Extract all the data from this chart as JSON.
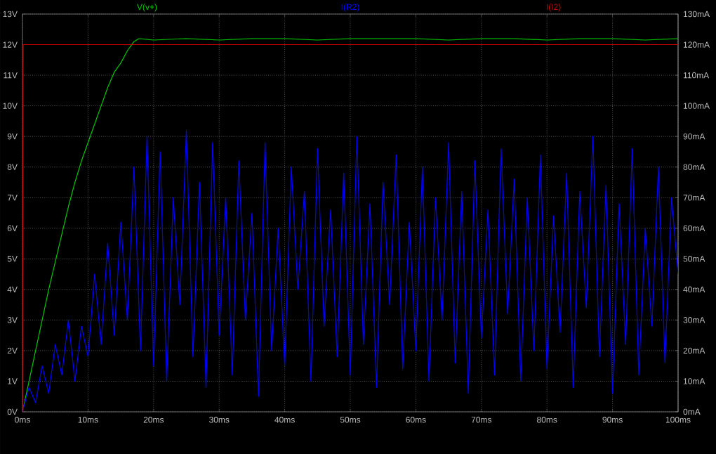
{
  "chart_data": {
    "type": "line",
    "xlim": [
      0,
      100
    ],
    "ylim": [
      0,
      13
    ],
    "y2lim": [
      0,
      130
    ],
    "xticks": [
      {
        "value": 0,
        "label": "0ms"
      },
      {
        "value": 10,
        "label": "10ms"
      },
      {
        "value": 20,
        "label": "20ms"
      },
      {
        "value": 30,
        "label": "30ms"
      },
      {
        "value": 40,
        "label": "40ms"
      },
      {
        "value": 50,
        "label": "50ms"
      },
      {
        "value": 60,
        "label": "60ms"
      },
      {
        "value": 70,
        "label": "70ms"
      },
      {
        "value": 80,
        "label": "80ms"
      },
      {
        "value": 90,
        "label": "90ms"
      },
      {
        "value": 100,
        "label": "100ms"
      }
    ],
    "yticks": [
      {
        "value": 0,
        "label": "0V"
      },
      {
        "value": 1,
        "label": "1V"
      },
      {
        "value": 2,
        "label": "2V"
      },
      {
        "value": 3,
        "label": "3V"
      },
      {
        "value": 4,
        "label": "4V"
      },
      {
        "value": 5,
        "label": "5V"
      },
      {
        "value": 6,
        "label": "6V"
      },
      {
        "value": 7,
        "label": "7V"
      },
      {
        "value": 8,
        "label": "8V"
      },
      {
        "value": 9,
        "label": "9V"
      },
      {
        "value": 10,
        "label": "10V"
      },
      {
        "value": 11,
        "label": "11V"
      },
      {
        "value": 12,
        "label": "12V"
      },
      {
        "value": 13,
        "label": "13V"
      }
    ],
    "y2ticks": [
      {
        "value": 0,
        "label": "0mA"
      },
      {
        "value": 10,
        "label": "10mA"
      },
      {
        "value": 20,
        "label": "20mA"
      },
      {
        "value": 30,
        "label": "30mA"
      },
      {
        "value": 40,
        "label": "40mA"
      },
      {
        "value": 50,
        "label": "50mA"
      },
      {
        "value": 60,
        "label": "60mA"
      },
      {
        "value": 70,
        "label": "70mA"
      },
      {
        "value": 80,
        "label": "80mA"
      },
      {
        "value": 90,
        "label": "90mA"
      },
      {
        "value": 100,
        "label": "100mA"
      },
      {
        "value": 110,
        "label": "110mA"
      },
      {
        "value": 120,
        "label": "120mA"
      },
      {
        "value": 130,
        "label": "130mA"
      }
    ],
    "grid": true,
    "series": [
      {
        "name": "V(v+)",
        "color": "#00c800",
        "x": [
          0,
          1,
          2,
          3,
          4,
          5,
          6,
          7,
          8,
          9,
          10,
          11,
          12,
          13,
          14,
          15,
          16,
          17,
          17.8,
          20,
          25,
          30,
          35,
          40,
          45,
          50,
          55,
          60,
          65,
          70,
          75,
          80,
          85,
          90,
          95,
          100
        ],
        "values": [
          0,
          1,
          2,
          3,
          4,
          4.9,
          5.8,
          6.7,
          7.5,
          8.2,
          8.8,
          9.4,
          10,
          10.6,
          11.1,
          11.4,
          11.8,
          12.1,
          12.2,
          12.15,
          12.2,
          12.15,
          12.2,
          12.2,
          12.15,
          12.2,
          12.2,
          12.2,
          12.15,
          12.2,
          12.2,
          12.15,
          12.2,
          12.2,
          12.15,
          12.2
        ]
      },
      {
        "name": "I(R2)",
        "color": "#0000ff",
        "axis": "y2",
        "x": [
          0,
          1,
          2,
          3,
          4,
          5,
          6,
          7,
          8,
          9,
          10,
          11,
          12,
          13,
          14,
          15,
          16,
          17,
          18,
          19,
          20,
          21,
          22,
          23,
          24,
          25,
          26,
          27,
          28,
          29,
          30,
          31,
          32,
          33,
          34,
          35,
          36,
          37,
          38,
          39,
          40,
          41,
          42,
          43,
          44,
          45,
          46,
          47,
          48,
          49,
          50,
          51,
          52,
          53,
          54,
          55,
          56,
          57,
          58,
          59,
          60,
          61,
          62,
          63,
          64,
          65,
          66,
          67,
          68,
          69,
          70,
          71,
          72,
          73,
          74,
          75,
          76,
          77,
          78,
          79,
          80,
          81,
          82,
          83,
          84,
          85,
          86,
          87,
          88,
          89,
          90,
          91,
          92,
          93,
          94,
          95,
          96,
          97,
          98,
          99,
          100
        ],
        "values": [
          0,
          8,
          3,
          15,
          6,
          22,
          12,
          30,
          10,
          28,
          18,
          45,
          22,
          55,
          25,
          62,
          30,
          80,
          20,
          90,
          15,
          85,
          10,
          70,
          35,
          92,
          18,
          75,
          8,
          88,
          25,
          70,
          12,
          82,
          30,
          65,
          5,
          88,
          20,
          60,
          15,
          80,
          40,
          72,
          10,
          86,
          28,
          66,
          18,
          78,
          12,
          90,
          22,
          68,
          8,
          75,
          35,
          84,
          14,
          62,
          20,
          80,
          10,
          70,
          30,
          88,
          16,
          72,
          6,
          82,
          24,
          66,
          12,
          86,
          32,
          76,
          10,
          70,
          20,
          84,
          14,
          64,
          26,
          78,
          8,
          72,
          34,
          90,
          18,
          74,
          6,
          68,
          22,
          86,
          12,
          60,
          28,
          80,
          16,
          70,
          45
        ]
      },
      {
        "name": "I(I2)",
        "color": "#c80000",
        "axis": "y2",
        "x": [
          0,
          0.1,
          100
        ],
        "values": [
          0,
          120,
          120
        ]
      }
    ]
  }
}
